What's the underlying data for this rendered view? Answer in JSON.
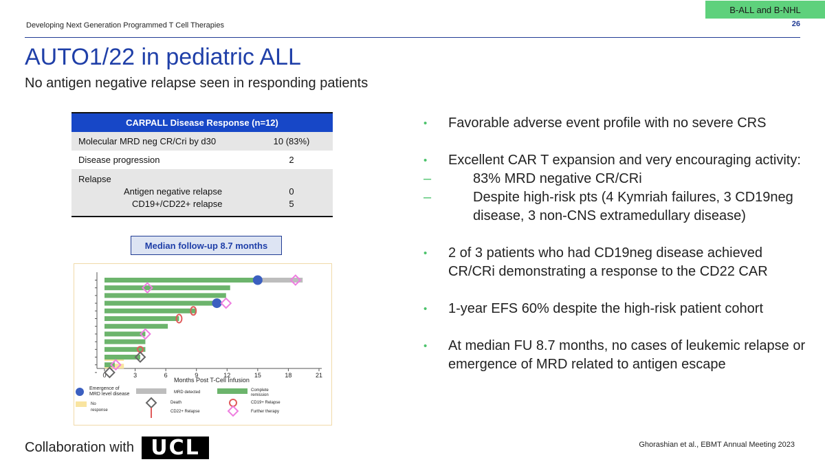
{
  "header": {
    "text": "Developing Next Generation Programmed T Cell Therapies",
    "badge": "B-ALL and B-NHL",
    "page_number": "26"
  },
  "title": "AUTO1/22 in pediatric ALL",
  "subtitle": "No antigen negative relapse seen in responding patients",
  "table": {
    "header": "CARPALL  Disease Response (n=12)",
    "rows": [
      {
        "label": "Molecular MRD neg CR/Cri by d30",
        "value": "10 (83%)"
      },
      {
        "label": "Disease progression",
        "value": "2"
      },
      {
        "label": "Relapse",
        "sub": [
          {
            "label": "Antigen negative relapse",
            "value": "0"
          },
          {
            "label": "CD19+/CD22+ relapse",
            "value": "5"
          }
        ]
      }
    ]
  },
  "followup": "Median follow-up 8.7 months",
  "chart_data": {
    "type": "bar",
    "orientation": "horizontal",
    "title": "",
    "xlabel": "Months Post T-Cell Infusion",
    "xticks": [
      "0",
      "3",
      "6",
      "9",
      "12",
      "15",
      "18",
      "21"
    ],
    "xlim": [
      0,
      21
    ],
    "series": [
      {
        "name": "Complete remission",
        "values": [
          15.0,
          12.3,
          11.9,
          11.0,
          9.0,
          7.3,
          6.2,
          4.0,
          4.0,
          4.0,
          3.5,
          1.0
        ]
      },
      {
        "name": "MRD detected",
        "values": [
          4.4,
          0,
          0,
          0,
          0,
          0,
          0,
          0,
          0,
          0,
          0,
          0
        ]
      }
    ],
    "markers": [
      {
        "type": "Emergence of MRD level disease",
        "row": 0,
        "x": 15.0
      },
      {
        "type": "Further therapy",
        "row": 0,
        "x": 18.7
      },
      {
        "type": "Further therapy",
        "row": 1,
        "x": 4.2
      },
      {
        "type": "Emergence of MRD level disease",
        "row": 3,
        "x": 11.0
      },
      {
        "type": "Further therapy",
        "row": 3,
        "x": 11.9
      },
      {
        "type": "CD19+ Relapse",
        "row": 4,
        "x": 8.7
      },
      {
        "type": "CD19+ Relapse",
        "row": 5,
        "x": 7.3
      },
      {
        "type": "Further therapy",
        "row": 7,
        "x": 4.0
      },
      {
        "type": "CD22+ Relapse",
        "row": 9,
        "x": 3.5
      },
      {
        "type": "Death",
        "row": 10,
        "x": 3.5
      },
      {
        "type": "Further therapy",
        "row": 11,
        "x": 1.1
      },
      {
        "type": "Death",
        "row": 12,
        "x": 0.5
      }
    ],
    "no_response_rows": [
      10,
      11
    ],
    "legend": [
      {
        "label": "Emergence of MRD level disease",
        "key": "mrd-emerge"
      },
      {
        "label": "MRD detected",
        "key": "mrd-detected"
      },
      {
        "label": "Complete remission",
        "key": "cr"
      },
      {
        "label": "No response",
        "key": "no-response"
      },
      {
        "label": "Death",
        "key": "death"
      },
      {
        "label": "CD19+ Relapse",
        "key": "cd19"
      },
      {
        "label": "CD22+ Relapse",
        "key": "cd22"
      },
      {
        "label": "Further therapy",
        "key": "further"
      }
    ]
  },
  "bullets": [
    {
      "text": "Favorable adverse event profile with no severe CRS"
    },
    {
      "text": "Excellent CAR T expansion and very encouraging activity:",
      "sub": [
        "83% MRD negative CR/CRi",
        "Despite high-risk pts (4 Kymriah failures, 3 CD19neg disease, 3 non-CNS extramedullary disease)"
      ]
    },
    {
      "text": "2 of 3 patients who had CD19neg disease achieved CR/CRi demonstrating a response to the CD22 CAR"
    },
    {
      "text": "1-year EFS 60% despite the high-risk patient cohort"
    },
    {
      "text": "At median FU 8.7 months, no cases of leukemic relapse or emergence of MRD related to antigen escape"
    }
  ],
  "footer": {
    "collab": "Collaboration with",
    "logo": "UCL",
    "citation": "Ghorashian et al., EBMT Annual Meeting 2023"
  },
  "colors": {
    "title": "#1f3fa8",
    "table_header": "#1747c7",
    "bar_cr": "#6cb46c",
    "bar_mrd": "#bdbdbd",
    "no_response": "#f9e4a0",
    "mrd_emerge": "#3b5fc0",
    "cd19": "#e05a5a",
    "further": "#ee7ee0",
    "death": "#666666"
  }
}
